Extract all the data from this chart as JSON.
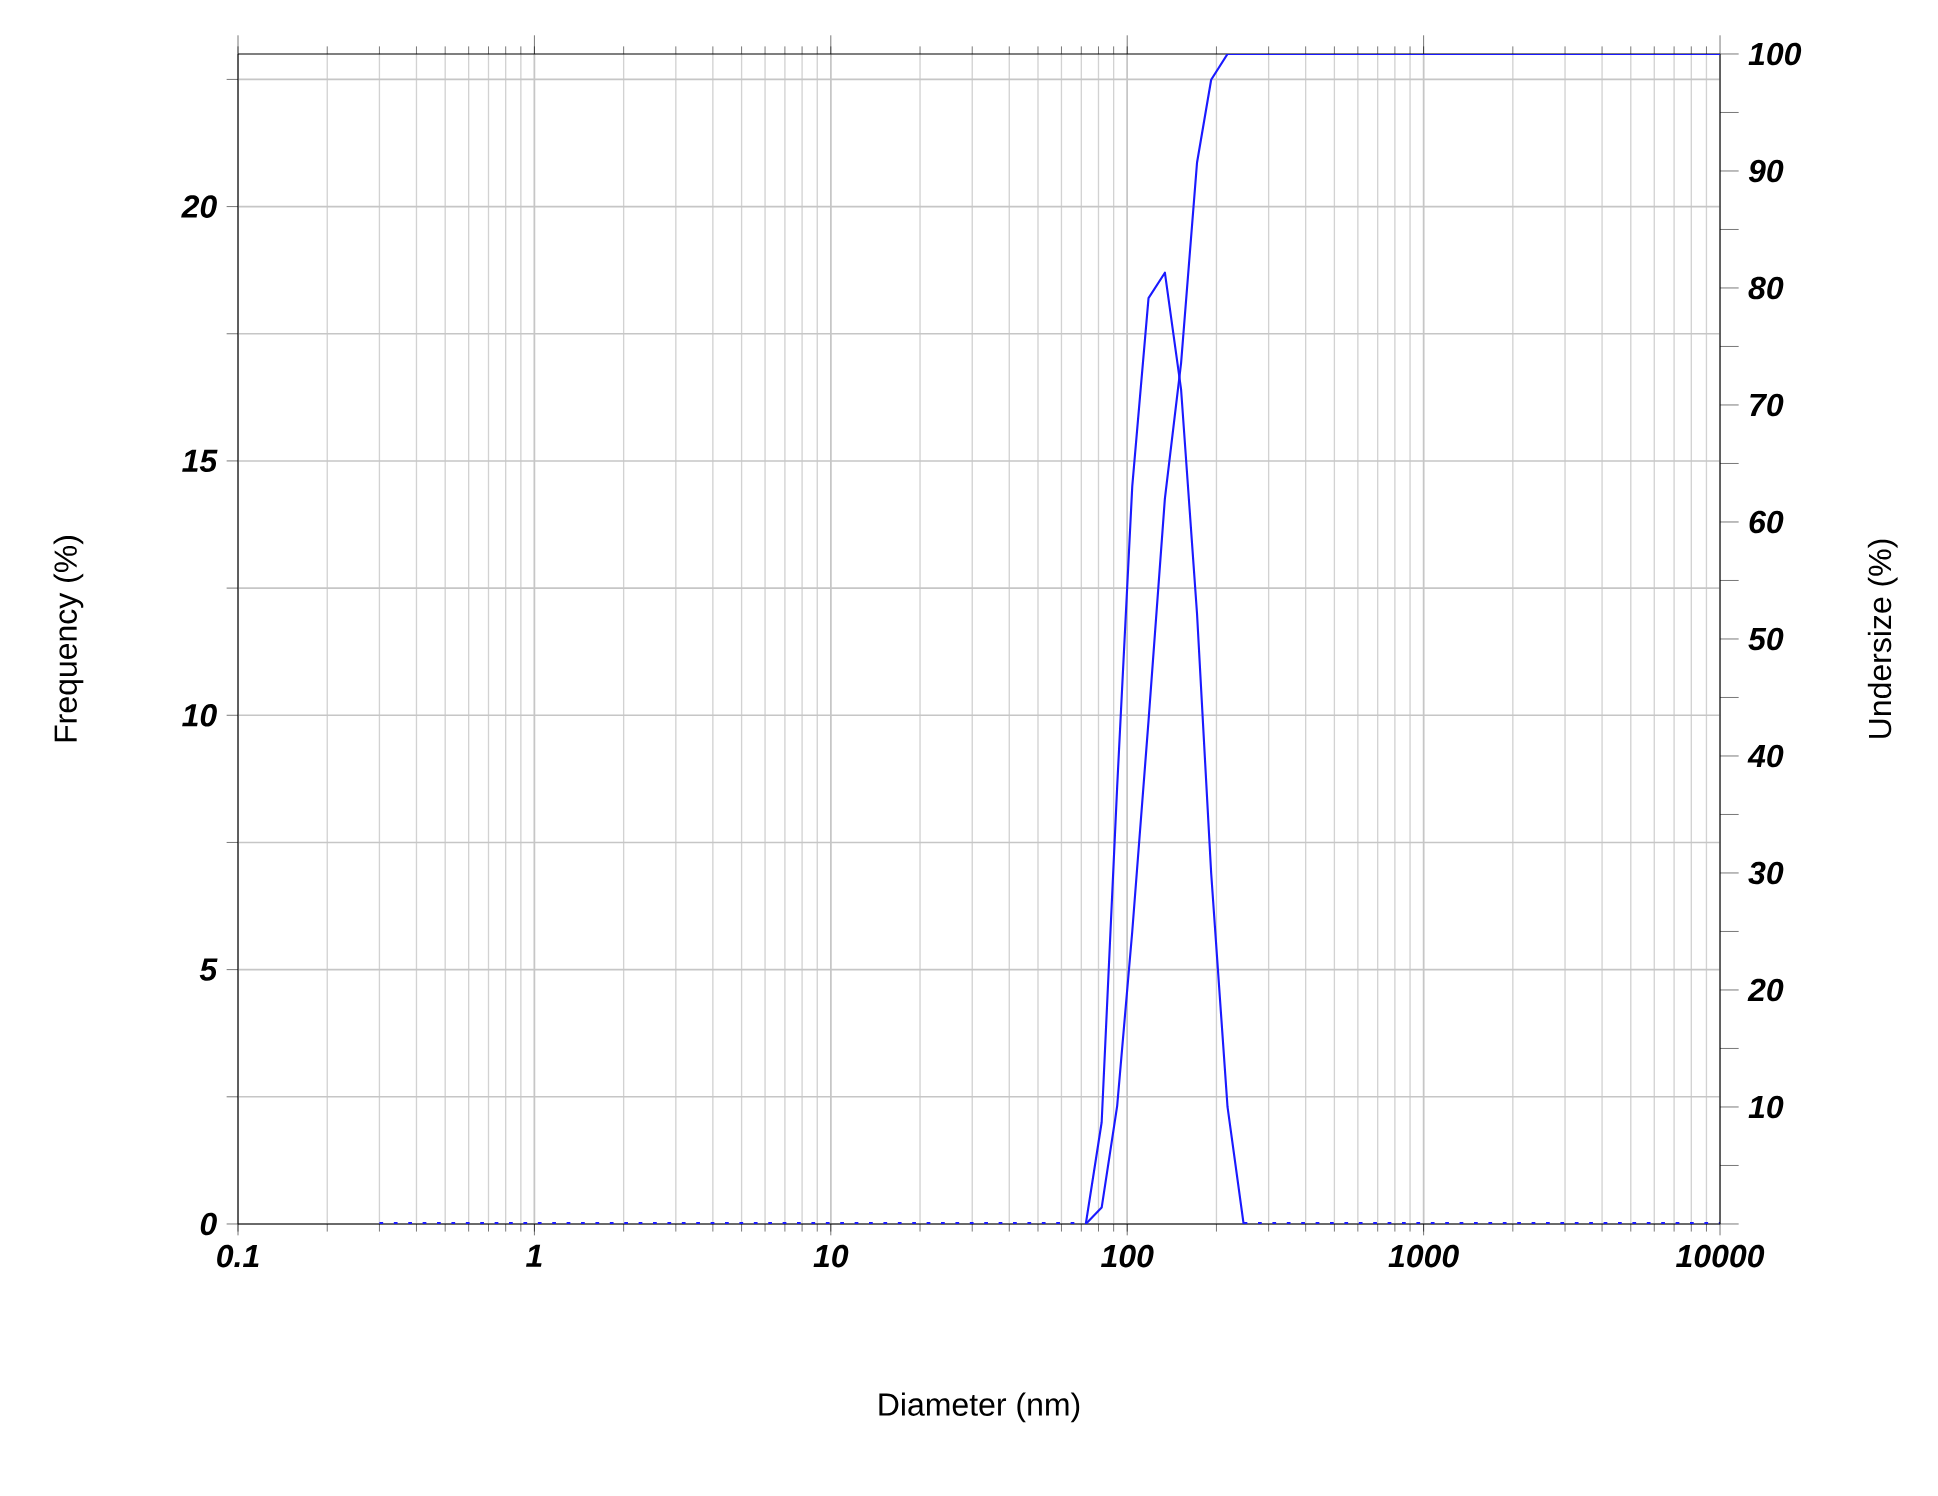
{
  "chart_data": {
    "type": "line",
    "xlabel": "Diameter (nm)",
    "ylabel": "Frequency (%)",
    "y2label": "Undersize (%)",
    "log": "x",
    "grid": true,
    "marker": "none",
    "xlim": [
      0.1,
      10000
    ],
    "xticks": [
      0.1,
      1,
      10,
      100,
      1000,
      10000
    ],
    "ylim": [
      0,
      23
    ],
    "yticks": [
      0,
      {
        "value": 2.5,
        "label": null
      },
      5,
      {
        "value": 7.5,
        "label": null
      },
      10,
      {
        "value": 12.5,
        "label": null
      },
      15,
      {
        "value": 17.5,
        "label": null
      },
      20,
      {
        "value": 22.5,
        "label": null
      }
    ],
    "y2lim": [
      0,
      100
    ],
    "y2ticks": [
      {
        "value": 0,
        "label": null
      },
      {
        "value": 5,
        "label": null
      },
      10,
      {
        "value": 15,
        "label": null
      },
      20,
      {
        "value": 25,
        "label": null
      },
      30,
      {
        "value": 35,
        "label": null
      },
      40,
      {
        "value": 45,
        "label": null
      },
      50,
      {
        "value": 55,
        "label": null
      },
      60,
      {
        "value": 65,
        "label": null
      },
      70,
      {
        "value": 75,
        "label": null
      },
      80,
      {
        "value": 85,
        "label": null
      },
      90,
      {
        "value": 95,
        "label": null
      },
      100
    ],
    "series": [
      {
        "color": "#1a1aff",
        "line_style": "solid",
        "x": [
          72.5,
          82,
          92.5,
          104,
          118,
          134,
          152,
          172,
          192,
          218,
          247
        ],
        "values": [
          0,
          2.0,
          8.6,
          14.5,
          18.2,
          18.7,
          16.4,
          12.0,
          6.9,
          2.3,
          0
        ]
      },
      {
        "color": "#1a1aff",
        "line_style": "dotted",
        "x": [
          0.3,
          72.5
        ],
        "values": [
          0,
          0
        ]
      },
      {
        "color": "#1a1aff",
        "line_style": "dotted",
        "x": [
          247,
          10000
        ],
        "values": [
          0,
          0
        ]
      },
      {
        "color": "#1a1aff",
        "line_style": "solid",
        "axis": "y2",
        "x": [
          72.5,
          82,
          92.5,
          104,
          118,
          134,
          152,
          172,
          192,
          218,
          10000
        ],
        "values": [
          0,
          1.4,
          10.1,
          25.0,
          43.0,
          62.0,
          73.6,
          90.7,
          97.8,
          100,
          100
        ]
      }
    ]
  }
}
